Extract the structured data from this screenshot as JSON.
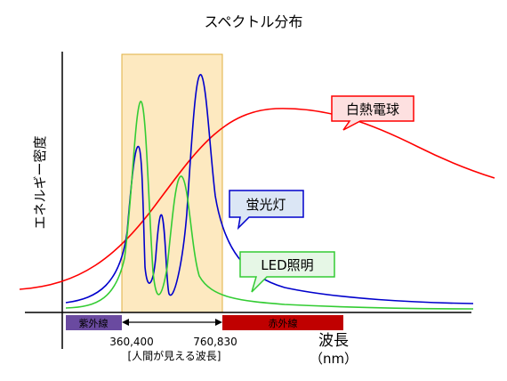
{
  "title": "スペクトル分布",
  "y_axis_label": "エネルギー密度",
  "x_axis_label": "波長",
  "x_axis_unit": "（nm）",
  "visible_band": {
    "start_label": "360,400",
    "end_label": "760,830",
    "caption": "[人間が見える波長]",
    "fill_color": "#fde9c0",
    "stroke_color": "#e0b040"
  },
  "bands": {
    "uv": {
      "label": "紫外線",
      "color": "#6a4aa0"
    },
    "ir": {
      "label": "赤外線",
      "color": "#c00000"
    }
  },
  "callouts": {
    "incandescent": {
      "label": "白熱電球",
      "color": "#ff0000",
      "fill": "#fde0e0"
    },
    "fluorescent": {
      "label": "蛍光灯",
      "color": "#0000cc",
      "fill": "#dbe6f5"
    },
    "led": {
      "label": "LED照明",
      "color": "#33cc33",
      "fill": "#e6f7e6"
    }
  }
}
